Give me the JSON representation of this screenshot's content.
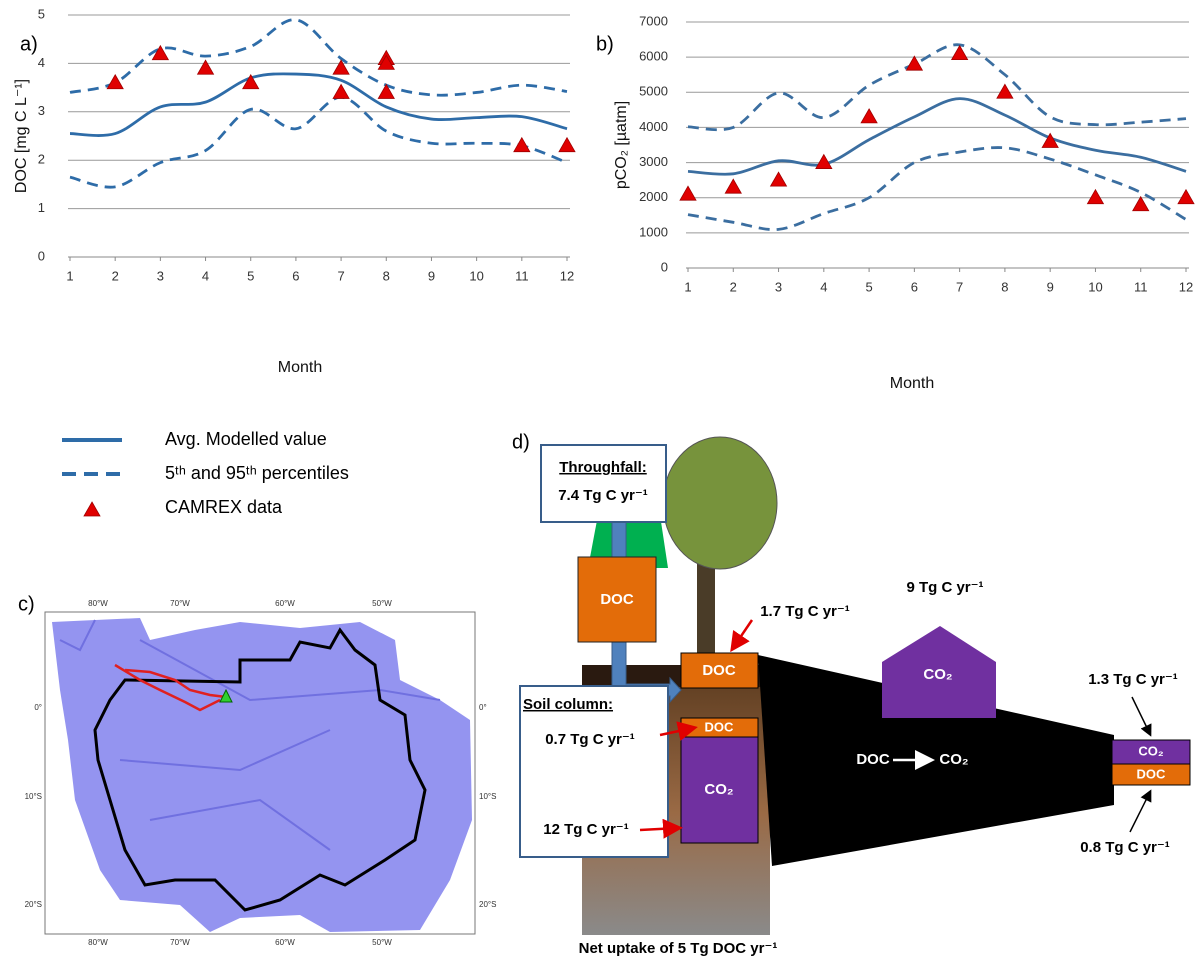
{
  "chart_data": [
    {
      "type": "line",
      "label": "a)",
      "xlabel": "Month",
      "ylabel": "DOC [mg C L⁻¹]",
      "x": [
        1,
        2,
        3,
        4,
        5,
        6,
        7,
        8,
        9,
        10,
        11,
        12
      ],
      "xlim": [
        1,
        12
      ],
      "xticks": [
        1,
        2,
        3,
        4,
        5,
        6,
        7,
        8,
        9,
        10,
        11,
        12
      ],
      "ylim": [
        0,
        5
      ],
      "yticks": [
        0,
        1,
        2,
        3,
        4,
        5
      ],
      "grid": true,
      "series": [
        {
          "name": "Avg. Modelled value",
          "color": "#2e6ca8",
          "style": "solid",
          "values": [
            2.55,
            2.55,
            3.1,
            3.2,
            3.7,
            3.78,
            3.65,
            3.1,
            2.85,
            2.88,
            2.9,
            2.65
          ]
        },
        {
          "name": "5ᵗʰ and 95ᵗʰ percentiles",
          "color": "#2e6ca8",
          "style": "dashed",
          "values": [
            3.4,
            3.6,
            4.3,
            4.15,
            4.35,
            4.9,
            4.1,
            3.55,
            3.35,
            3.4,
            3.55,
            3.42
          ]
        },
        {
          "color": "#2e6ca8",
          "style": "dashed",
          "values": [
            1.65,
            1.45,
            1.95,
            2.2,
            3.05,
            2.65,
            3.3,
            2.6,
            2.35,
            2.35,
            2.3,
            1.95
          ]
        },
        {
          "name": "CAMREX data",
          "type": "scatter",
          "color": "#e00000",
          "x": [
            2,
            3,
            4,
            5,
            7,
            7,
            8,
            8,
            8,
            11,
            12
          ],
          "values": [
            3.6,
            4.2,
            3.9,
            3.6,
            3.9,
            3.4,
            4.1,
            4.0,
            3.4,
            2.3,
            2.3
          ]
        }
      ]
    },
    {
      "type": "line",
      "label": "b)",
      "xlabel": "Month",
      "ylabel": "pCO₂ [µatm]",
      "x": [
        1,
        2,
        3,
        4,
        5,
        6,
        7,
        8,
        9,
        10,
        11,
        12
      ],
      "xlim": [
        1,
        12
      ],
      "xticks": [
        1,
        2,
        3,
        4,
        5,
        6,
        7,
        8,
        9,
        10,
        11,
        12
      ],
      "ylim": [
        0,
        7000
      ],
      "yticks": [
        0,
        1000,
        2000,
        3000,
        4000,
        5000,
        6000,
        7000
      ],
      "grid": true,
      "series": [
        {
          "color": "#3b6ea0",
          "style": "solid",
          "values": [
            2750,
            2680,
            3050,
            2950,
            3650,
            4300,
            4820,
            4350,
            3700,
            3350,
            3150,
            2750
          ]
        },
        {
          "color": "#3b6ea0",
          "style": "dashed",
          "values": [
            4020,
            4000,
            4980,
            4280,
            5200,
            5800,
            6350,
            5500,
            4300,
            4080,
            4150,
            4250
          ]
        },
        {
          "color": "#3b6ea0",
          "style": "dashed",
          "values": [
            1520,
            1300,
            1100,
            1550,
            2000,
            3000,
            3300,
            3420,
            3100,
            2650,
            2150,
            1380
          ]
        },
        {
          "type": "scatter",
          "color": "#e00000",
          "x": [
            1,
            2,
            3,
            4,
            5,
            6,
            7,
            8,
            9,
            10,
            11,
            12
          ],
          "values": [
            2100,
            2300,
            2500,
            3000,
            4300,
            5800,
            6100,
            5000,
            3600,
            2000,
            1800,
            2000
          ]
        }
      ]
    }
  ],
  "map": {
    "label": "c)",
    "lon_labels": [
      "80°W",
      "70°W",
      "60°W",
      "50°W"
    ],
    "lat_labels": [
      "0°",
      "10°S",
      "20°S"
    ]
  },
  "diagram": {
    "label": "d)",
    "throughfall_title": "Throughfall:",
    "throughfall_flux": "7.4 Tg C yr⁻¹",
    "canopy_doc": "DOC",
    "litter_flux": "1.7 Tg C yr⁻¹",
    "surface_doc": "DOC",
    "soil_title": "Soil column:",
    "soil_doc_flux": "0.7 Tg C yr⁻¹",
    "soil_co2_flux": "12 Tg C yr⁻¹",
    "soil_doc": "DOC",
    "soil_co2": "CO₂",
    "evasion_flux": "9 Tg C yr⁻¹",
    "evasion_co2": "CO₂",
    "river_from": "DOC",
    "river_to": "CO₂",
    "export_co2_flux": "1.3 Tg C yr⁻¹",
    "export_co2": "CO₂",
    "export_doc": "DOC",
    "export_doc_flux": "0.8 Tg C yr⁻¹",
    "net_uptake": "Net uptake of 5 Tg DOC yr⁻¹"
  }
}
